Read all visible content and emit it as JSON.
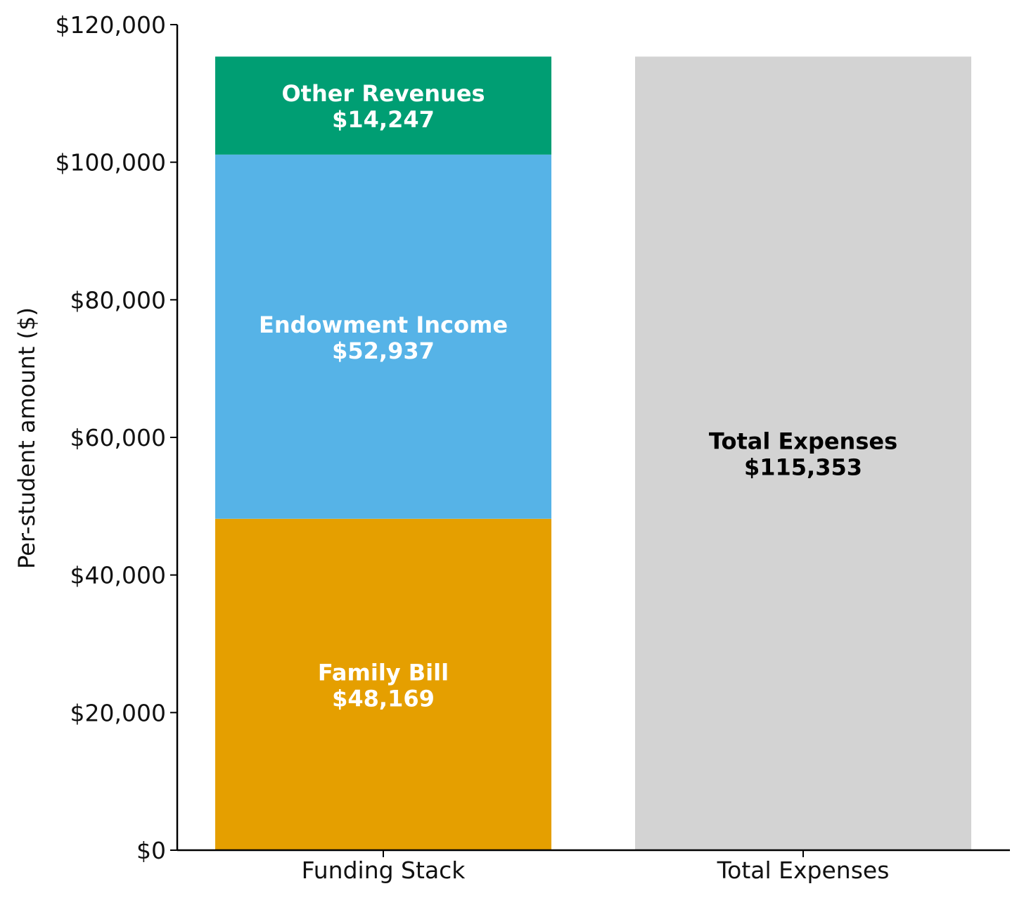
{
  "chart_data": {
    "type": "bar",
    "stacked": true,
    "categories": [
      "Funding Stack",
      "Total Expenses"
    ],
    "series": [
      {
        "category": "Funding Stack",
        "name": "Family Bill",
        "value": 48169,
        "value_label": "$48,169",
        "color": "#E59F00",
        "text_color": "#ffffff"
      },
      {
        "category": "Funding Stack",
        "name": "Endowment Income",
        "value": 52937,
        "value_label": "$52,937",
        "color": "#56B3E7",
        "text_color": "#ffffff"
      },
      {
        "category": "Funding Stack",
        "name": "Other Revenues",
        "value": 14247,
        "value_label": "$14,247",
        "color": "#009E73",
        "text_color": "#ffffff"
      },
      {
        "category": "Total Expenses",
        "name": "Total Expenses",
        "value": 115353,
        "value_label": "$115,353",
        "color": "#D3D3D3",
        "text_color": "#000000"
      }
    ],
    "ylabel": "Per-student amount ($)",
    "ylim": [
      0,
      120000
    ],
    "yticks": [
      0,
      20000,
      40000,
      60000,
      80000,
      100000,
      120000
    ],
    "ytick_labels": [
      "$0",
      "$20,000",
      "$40,000",
      "$60,000",
      "$80,000",
      "$100,000",
      "$120,000"
    ],
    "grid": false,
    "legend": "none"
  }
}
